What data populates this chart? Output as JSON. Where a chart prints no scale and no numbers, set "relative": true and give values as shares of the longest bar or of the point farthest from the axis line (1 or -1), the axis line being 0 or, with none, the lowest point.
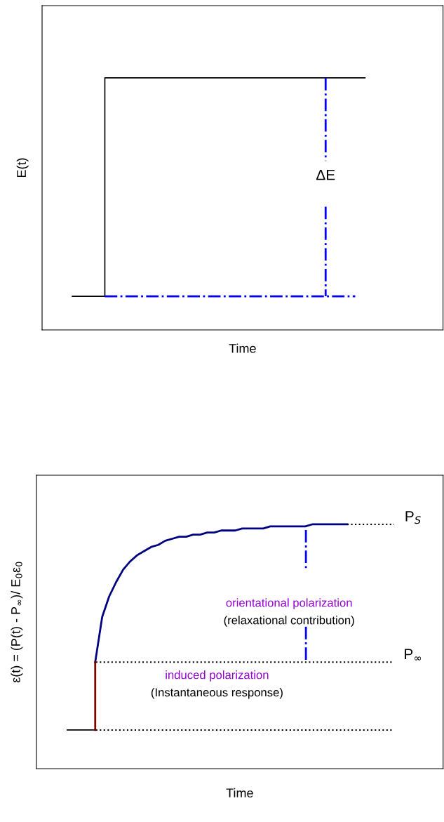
{
  "chart_data": [
    {
      "type": "step",
      "xlabel": "Time",
      "ylabel": "E(t)",
      "relative": true,
      "legend": false,
      "tick_labels": false,
      "categories": [
        null,
        null,
        null,
        null,
        null,
        null,
        null,
        null,
        null,
        null
      ],
      "series": [
        {
          "color": "#000000",
          "values": [
            0,
            1,
            1,
            1,
            1,
            1,
            1,
            1,
            1,
            1
          ]
        }
      ],
      "annotations": [
        "ΔE"
      ]
    },
    {
      "type": "line",
      "xlabel": "Time",
      "ylabel": "ε(t) = (P(t) - P$_{∞}$)/ E$_{0}$ε$_{0}$",
      "relative": true,
      "legend": false,
      "tick_labels": false,
      "categories": [
        null,
        null,
        null,
        null,
        null,
        null,
        null,
        null,
        null,
        null,
        null,
        null,
        null,
        null,
        null,
        null,
        null,
        null,
        null,
        null,
        null,
        null,
        null,
        null,
        null,
        null,
        null,
        null,
        null,
        null,
        null,
        null,
        null,
        null,
        null,
        null,
        null,
        null,
        null,
        null,
        null
      ],
      "series": [
        {
          "color": "#000000",
          "values": [
            0,
            0,
            0,
            0,
            0,
            null,
            null,
            null,
            null,
            null,
            null,
            null,
            null,
            null,
            null,
            null,
            null,
            null,
            null,
            null,
            null,
            null,
            null,
            null,
            null,
            null,
            null,
            null,
            null,
            null,
            null,
            null,
            null,
            null,
            null,
            null,
            null,
            null,
            null,
            null,
            null
          ]
        },
        {
          "color": "#000080",
          "values": [
            null,
            null,
            null,
            null,
            0.33,
            0.55,
            0.65,
            0.72,
            0.78,
            0.82,
            0.85,
            0.87,
            0.89,
            0.9,
            0.92,
            0.93,
            0.94,
            0.94,
            0.95,
            0.95,
            0.96,
            0.96,
            0.97,
            0.97,
            0.97,
            0.98,
            0.98,
            0.98,
            0.98,
            0.99,
            0.99,
            0.99,
            0.99,
            0.99,
            0.99,
            1.0,
            1.0,
            1.0,
            1.0,
            1.0,
            1.0
          ]
        }
      ],
      "ref_lines": [
        {
          "axis": "y",
          "value": 1,
          "label": "P$_{S}$",
          "color": "#000000",
          "line_style": "dotted"
        },
        {
          "axis": "y",
          "value": 0.33,
          "label": "P$_{∞}$",
          "color": "#000000",
          "line_style": "dotted"
        },
        {
          "axis": "y",
          "value": 0,
          "label": null,
          "color": "#000000",
          "line_style": "dotted"
        }
      ],
      "annotations": [
        "orientational polarization",
        "(relaxational contribution)",
        "induced polarization",
        "(Instantaneous response)"
      ]
    }
  ]
}
